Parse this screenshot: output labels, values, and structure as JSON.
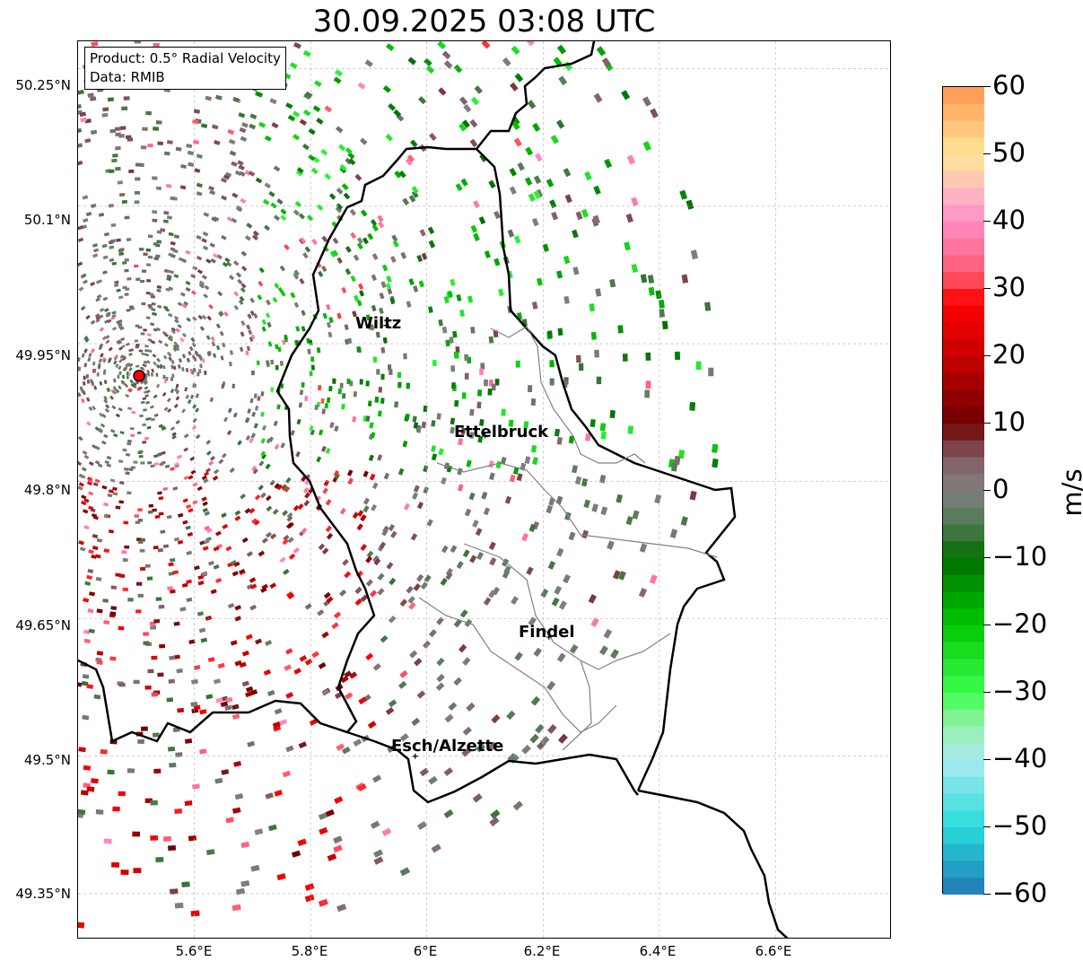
{
  "title": "30.09.2025 03:08 UTC",
  "info": {
    "product": "Product: 0.5° Radial Velocity",
    "data_source": "Data: RMIB"
  },
  "map": {
    "lat_range": [
      49.3,
      50.28
    ],
    "lon_range": [
      5.4,
      6.8
    ],
    "lat_ticks": [
      "50.25°N",
      "50.1°N",
      "49.95°N",
      "49.8°N",
      "49.65°N",
      "49.5°N",
      "49.35°N"
    ],
    "lat_tick_values": [
      50.25,
      50.1,
      49.95,
      49.8,
      49.65,
      49.5,
      49.35
    ],
    "lon_ticks": [
      "5.6°E",
      "5.8°E",
      "6°E",
      "6.2°E",
      "6.4°E",
      "6.6°E"
    ],
    "lon_tick_values": [
      5.6,
      5.8,
      6.0,
      6.2,
      6.4,
      6.6
    ],
    "cities": [
      {
        "name": "Wiltz",
        "lat": 49.97,
        "lon": 5.93
      },
      {
        "name": "Ettelbruck",
        "lat": 49.85,
        "lon": 6.1
      },
      {
        "name": "Findel",
        "lat": 49.63,
        "lon": 6.21
      },
      {
        "name": "Esch/Alzette",
        "lat": 49.5,
        "lon": 5.98
      }
    ],
    "radar_site": {
      "lat": 49.915,
      "lon": 5.505
    }
  },
  "colorbar": {
    "unit": "m/s",
    "min": -60,
    "max": 60,
    "ticks": [
      "60",
      "50",
      "40",
      "30",
      "20",
      "10",
      "0",
      "−10",
      "−20",
      "−30",
      "−40",
      "−50",
      "−60"
    ],
    "tick_values": [
      60,
      50,
      40,
      30,
      20,
      10,
      0,
      -10,
      -20,
      -30,
      -40,
      -50,
      -60
    ]
  },
  "colors": {
    "approaching_green": "#007a00",
    "receding_red": "#7a0000",
    "near_zero": "#7f7f7f",
    "border": "#000000",
    "district": "#808080"
  }
}
